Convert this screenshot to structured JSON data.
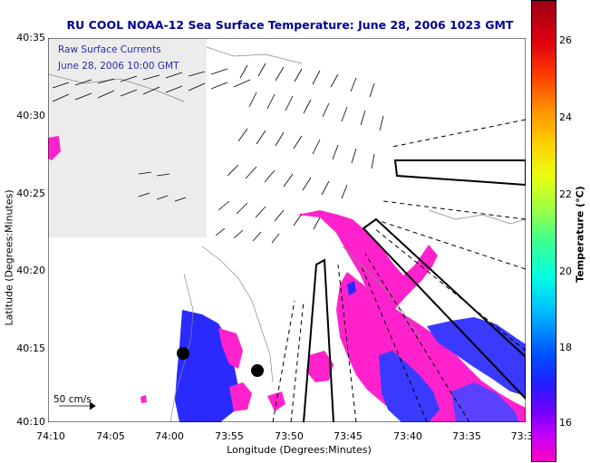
{
  "title": "RU COOL  NOAA-12  Sea Surface Temperature:  June 28, 2006 1023 GMT",
  "overlay_line1": "Raw Surface Currents",
  "overlay_line2": "June 28, 2006 10:00 GMT",
  "ylabel": "Latitude (Degrees:Minutes)",
  "xlabel": "Longitude (Degrees:Minutes)",
  "yticks": [
    "40:35",
    "40:30",
    "40:25",
    "40:20",
    "40:15",
    "40:10"
  ],
  "xticks": [
    "74:10",
    "74:05",
    "74:00",
    "73:55",
    "73:50",
    "73:45",
    "73:40",
    "73:35",
    "73:3"
  ],
  "scale_label": "50 cm/s",
  "colorbar": {
    "label": "Temperature (°C)",
    "ticks": [
      "26",
      "24",
      "22",
      "20",
      "18",
      "16"
    ]
  },
  "colors": {
    "title": "#000099",
    "warm_water": "#ff22cc",
    "cool_water": "#2a2aff",
    "land": "#ffffff"
  }
}
